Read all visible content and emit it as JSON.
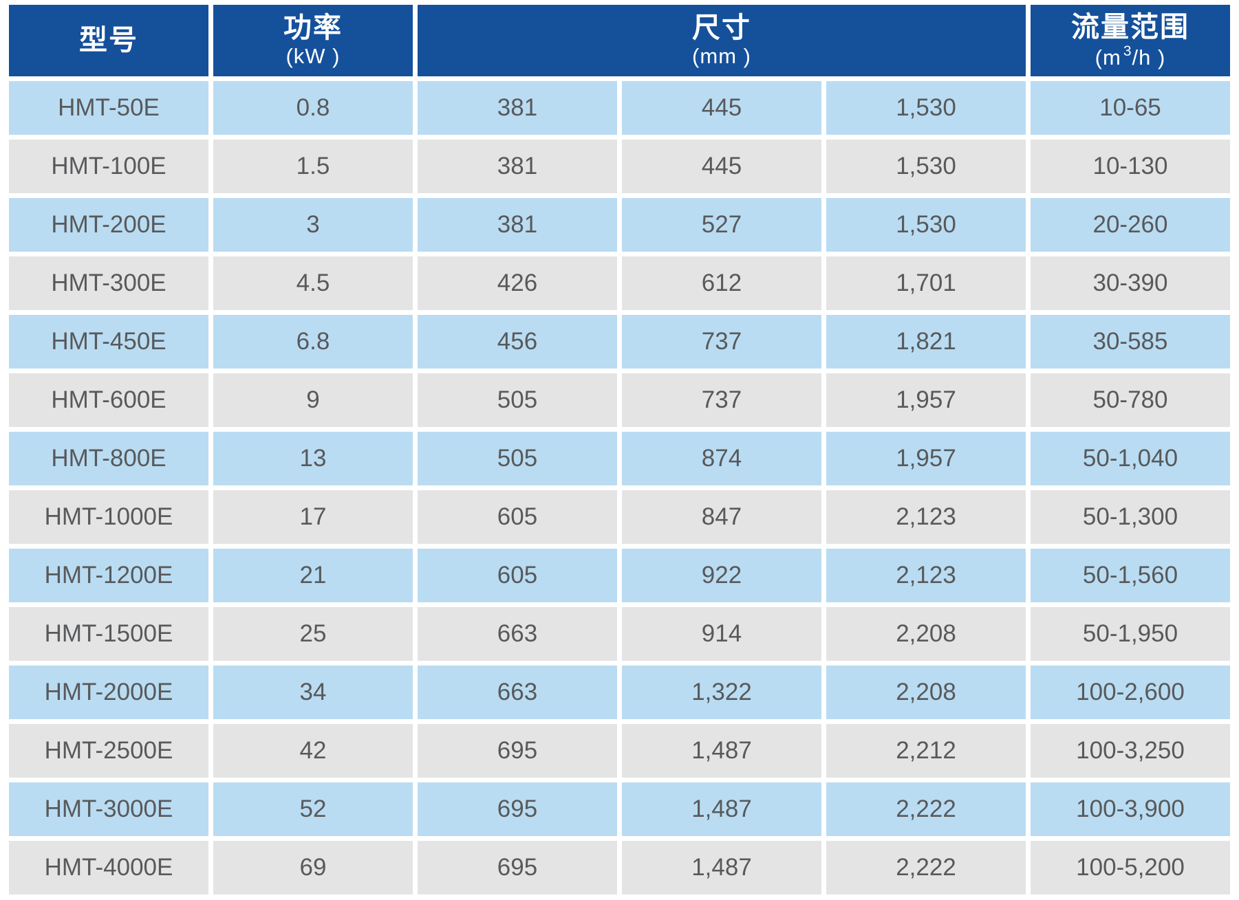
{
  "colors": {
    "header_blue": "#15509B",
    "row_blue": "#B9DCF2",
    "row_gray": "#E4E4E4",
    "cell_text": "#58595B",
    "header_text": "#FFFFFF",
    "background": "#FFFFFF"
  },
  "header": {
    "model": {
      "label": "型号"
    },
    "power": {
      "label": "功率",
      "unit": "(kW )"
    },
    "dimensions": {
      "label": "尺寸",
      "unit": "(mm )"
    },
    "flow": {
      "label": "流量范围",
      "unit_prefix": "(m",
      "unit_sup": "3",
      "unit_suffix": "/h )"
    }
  },
  "rows": [
    {
      "model": "HMT-50E",
      "power": "0.8",
      "dim1": "381",
      "dim2": "445",
      "dim3": "1,530",
      "flow": "10-65"
    },
    {
      "model": "HMT-100E",
      "power": "1.5",
      "dim1": "381",
      "dim2": "445",
      "dim3": "1,530",
      "flow": "10-130"
    },
    {
      "model": "HMT-200E",
      "power": "3",
      "dim1": "381",
      "dim2": "527",
      "dim3": "1,530",
      "flow": "20-260"
    },
    {
      "model": "HMT-300E",
      "power": "4.5",
      "dim1": "426",
      "dim2": "612",
      "dim3": "1,701",
      "flow": "30-390"
    },
    {
      "model": "HMT-450E",
      "power": "6.8",
      "dim1": "456",
      "dim2": "737",
      "dim3": "1,821",
      "flow": "30-585"
    },
    {
      "model": "HMT-600E",
      "power": "9",
      "dim1": "505",
      "dim2": "737",
      "dim3": "1,957",
      "flow": "50-780"
    },
    {
      "model": "HMT-800E",
      "power": "13",
      "dim1": "505",
      "dim2": "874",
      "dim3": "1,957",
      "flow": "50-1,040"
    },
    {
      "model": "HMT-1000E",
      "power": "17",
      "dim1": "605",
      "dim2": "847",
      "dim3": "2,123",
      "flow": "50-1,300"
    },
    {
      "model": "HMT-1200E",
      "power": "21",
      "dim1": "605",
      "dim2": "922",
      "dim3": "2,123",
      "flow": "50-1,560"
    },
    {
      "model": "HMT-1500E",
      "power": "25",
      "dim1": "663",
      "dim2": "914",
      "dim3": "2,208",
      "flow": "50-1,950"
    },
    {
      "model": "HMT-2000E",
      "power": "34",
      "dim1": "663",
      "dim2": "1,322",
      "dim3": "2,208",
      "flow": "100-2,600"
    },
    {
      "model": "HMT-2500E",
      "power": "42",
      "dim1": "695",
      "dim2": "1,487",
      "dim3": "2,212",
      "flow": "100-3,250"
    },
    {
      "model": "HMT-3000E",
      "power": "52",
      "dim1": "695",
      "dim2": "1,487",
      "dim3": "2,222",
      "flow": "100-3,900"
    },
    {
      "model": "HMT-4000E",
      "power": "69",
      "dim1": "695",
      "dim2": "1,487",
      "dim3": "2,222",
      "flow": "100-5,200"
    }
  ],
  "chart_data": {
    "type": "table",
    "title": "",
    "columns": [
      "型号",
      "功率 (kW)",
      "尺寸 (mm) 1",
      "尺寸 (mm) 2",
      "尺寸 (mm) 3",
      "流量范围 (m3/h)"
    ],
    "rows": [
      [
        "HMT-50E",
        "0.8",
        "381",
        "445",
        "1,530",
        "10-65"
      ],
      [
        "HMT-100E",
        "1.5",
        "381",
        "445",
        "1,530",
        "10-130"
      ],
      [
        "HMT-200E",
        "3",
        "381",
        "527",
        "1,530",
        "20-260"
      ],
      [
        "HMT-300E",
        "4.5",
        "426",
        "612",
        "1,701",
        "30-390"
      ],
      [
        "HMT-450E",
        "6.8",
        "456",
        "737",
        "1,821",
        "30-585"
      ],
      [
        "HMT-600E",
        "9",
        "505",
        "737",
        "1,957",
        "50-780"
      ],
      [
        "HMT-800E",
        "13",
        "505",
        "874",
        "1,957",
        "50-1,040"
      ],
      [
        "HMT-1000E",
        "17",
        "605",
        "847",
        "2,123",
        "50-1,300"
      ],
      [
        "HMT-1200E",
        "21",
        "605",
        "922",
        "2,123",
        "50-1,560"
      ],
      [
        "HMT-1500E",
        "25",
        "663",
        "914",
        "2,208",
        "50-1,950"
      ],
      [
        "HMT-2000E",
        "34",
        "663",
        "1,322",
        "2,208",
        "100-2,600"
      ],
      [
        "HMT-2500E",
        "42",
        "695",
        "1,487",
        "2,212",
        "100-3,250"
      ],
      [
        "HMT-3000E",
        "52",
        "695",
        "1,487",
        "2,222",
        "100-3,900"
      ],
      [
        "HMT-4000E",
        "69",
        "695",
        "1,487",
        "2,222",
        "100-5,200"
      ]
    ],
    "layout": "header row dark blue spanning 6 columns (dimension header merged over 3 sub-columns); body rows alternate light blue / light gray; all cells center-aligned; white gutters between cells"
  }
}
